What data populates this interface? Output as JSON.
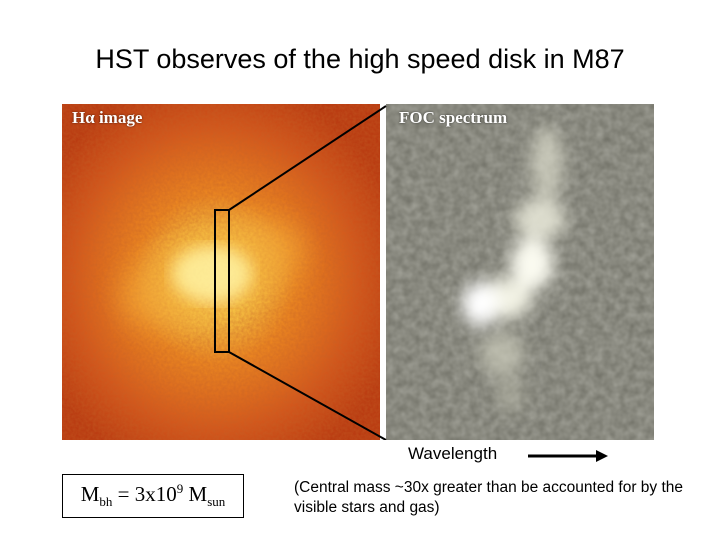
{
  "slide": {
    "title": "HST observes of the high speed disk in M87"
  },
  "figure": {
    "left_panel_label": "Hα image",
    "right_panel_label": "FOC spectrum",
    "axis_label": "Wavelength"
  },
  "mass": {
    "symbol": "M",
    "sub_bh": "bh",
    "equals": " = 3x10",
    "exponent": "9",
    "symbol2": " M",
    "sub_sun": "sun"
  },
  "note": "(Central mass ~30x greater than be accounted for by the visible stars and gas)",
  "colors": {
    "halpha_core": "#fff3a0",
    "halpha_outer": "#c4420c",
    "spectrum_bg": "#6e6e62",
    "spectrum_bright": "#ffffff"
  }
}
